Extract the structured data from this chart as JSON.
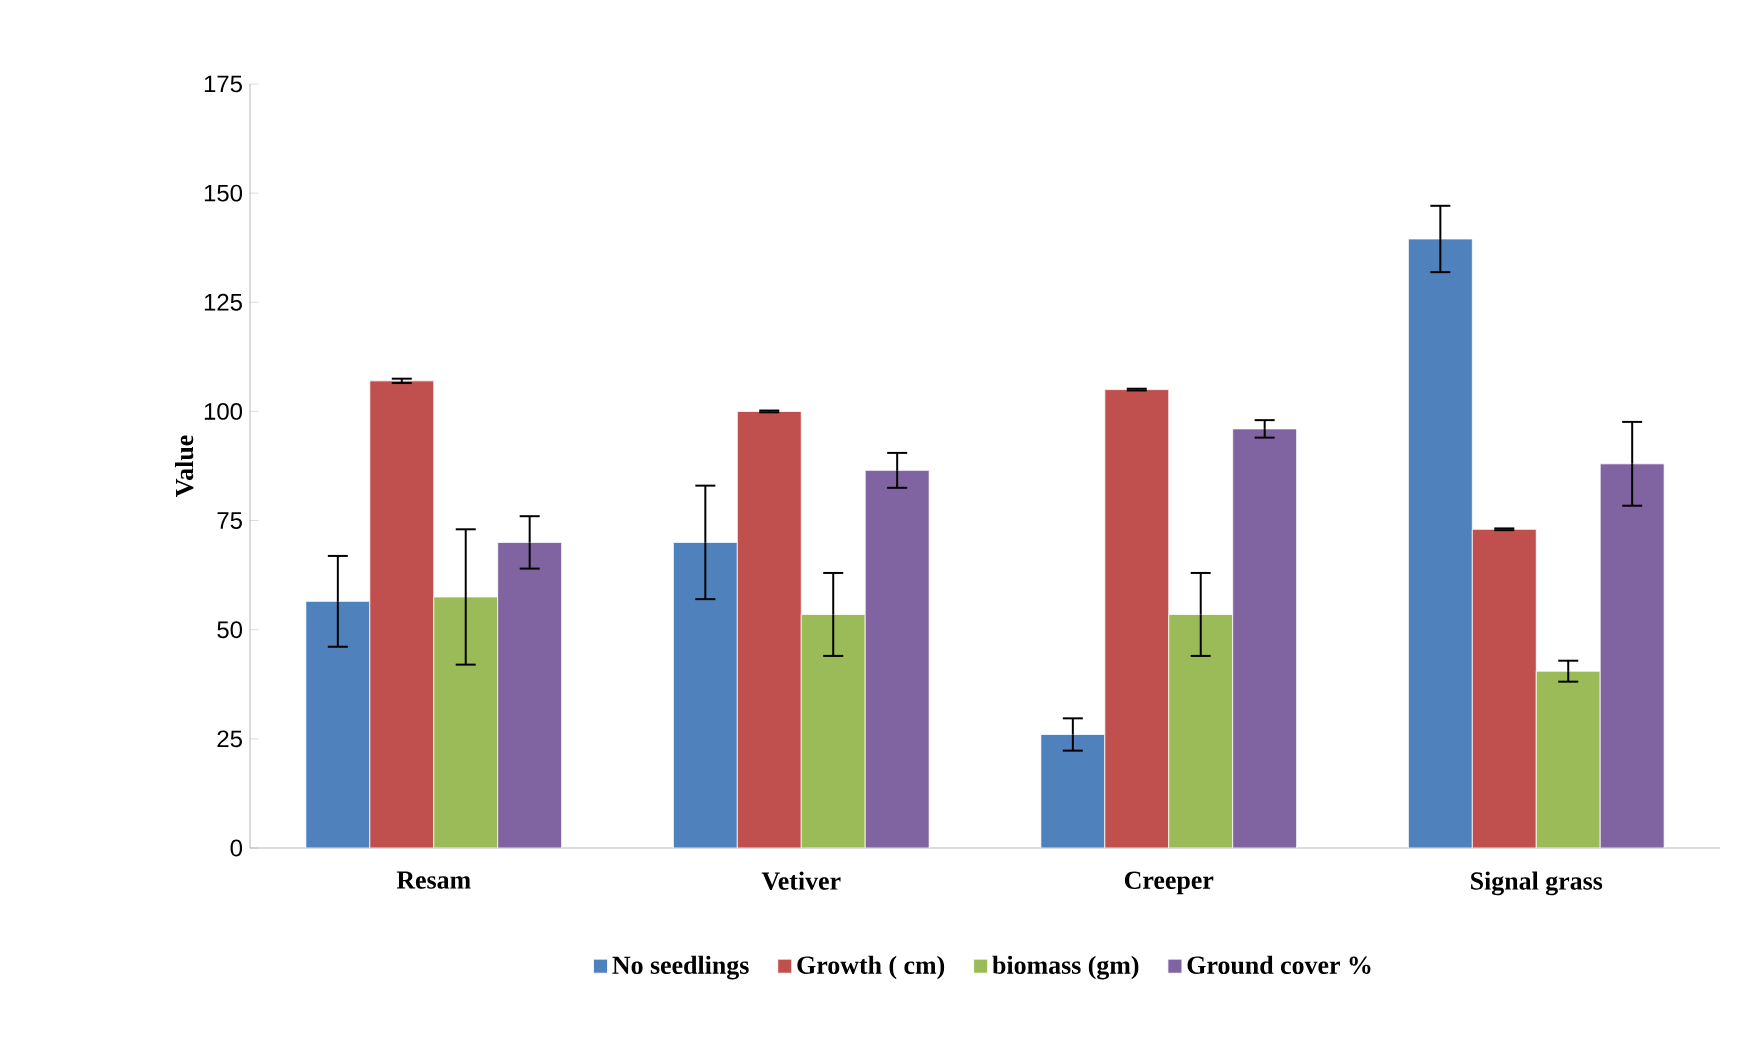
{
  "chart_data": {
    "type": "bar",
    "ylabel": "Value",
    "categories": [
      "Resam",
      "Vetiver",
      "Creeper",
      "Signal grass"
    ],
    "ylim": [
      0,
      175
    ],
    "yticks": [
      0,
      25,
      50,
      75,
      100,
      125,
      150,
      175
    ],
    "legend": "bottom",
    "grid": false,
    "series": [
      {
        "name": "No seedlings",
        "color": "#4f81bd",
        "values": [
          56.5,
          70,
          26,
          139.5
        ],
        "errors": [
          10.4,
          13,
          3.7,
          7.6
        ]
      },
      {
        "name": "Growth ( cm)",
        "color": "#c0504d",
        "values": [
          107,
          100,
          105,
          73
        ],
        "errors": [
          0.5,
          0.2,
          0.2,
          0.2
        ]
      },
      {
        "name": "biomass (gm)",
        "color": "#9bbb59",
        "values": [
          57.5,
          53.5,
          53.5,
          40.5
        ],
        "errors": [
          15.5,
          9.5,
          9.5,
          2.4
        ]
      },
      {
        "name": "Ground cover %",
        "color": "#8064a2",
        "values": [
          70,
          86.5,
          96,
          88
        ],
        "errors": [
          6,
          4,
          2,
          9.6
        ]
      }
    ]
  }
}
